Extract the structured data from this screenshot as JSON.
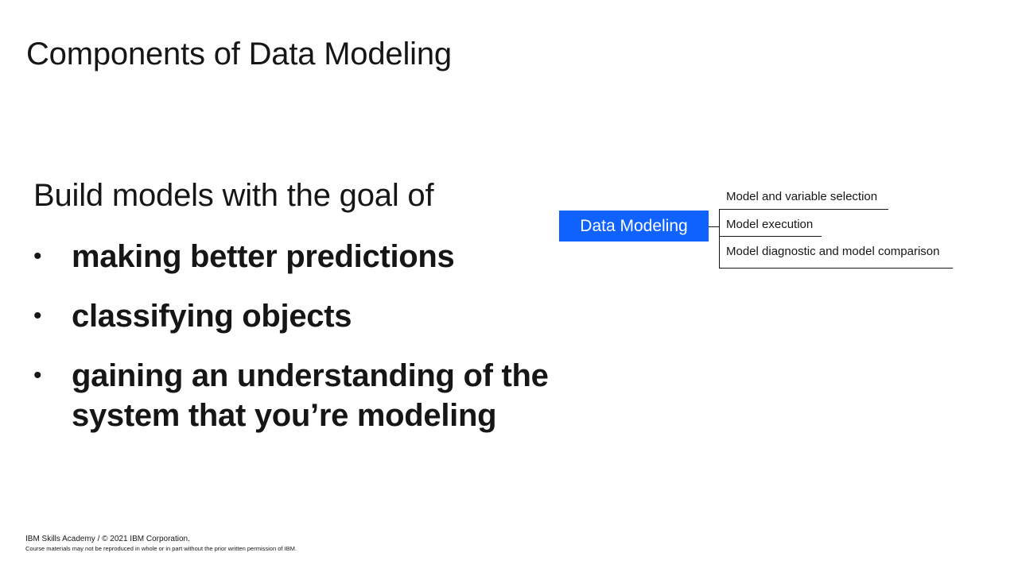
{
  "slide": {
    "title": "Components of Data Modeling",
    "intro": "Build models with the goal of",
    "bullets": [
      "making better predictions",
      "classifying objects",
      "gaining an understanding of the system that you’re modeling"
    ]
  },
  "diagram": {
    "root_label": "Data Modeling",
    "root_color": "#0f62fe",
    "branches": [
      "Model and variable selection",
      "Model execution",
      "Model diagnostic and model comparison"
    ]
  },
  "footer": {
    "copyright": "IBM Skills Academy / © 2021 IBM Corporation.",
    "notice": "Course  materials  may not be reproduced  in whole  or  in part without  the prior  written  permission   of IBM."
  }
}
